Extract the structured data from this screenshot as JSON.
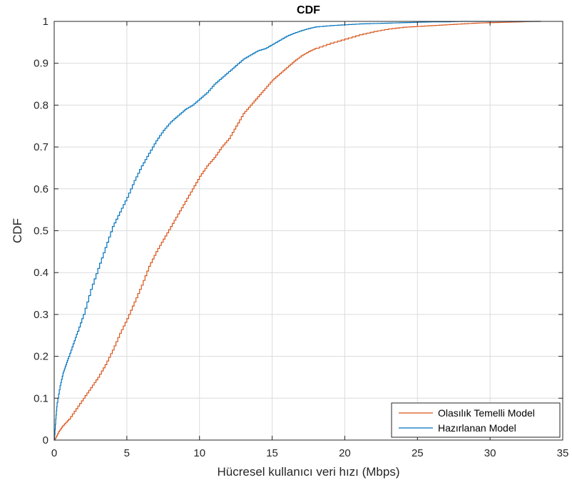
{
  "chart_data": {
    "type": "line",
    "title": "CDF",
    "xlabel": "Hücresel kullanıcı veri hızı (Mbps)",
    "ylabel": "CDF",
    "xlim": [
      0,
      35
    ],
    "ylim": [
      0,
      1
    ],
    "xticks": [
      0,
      5,
      10,
      15,
      20,
      25,
      30,
      35
    ],
    "yticks": [
      0,
      0.1,
      0.2,
      0.3,
      0.4,
      0.5,
      0.6,
      0.7,
      0.8,
      0.9,
      1
    ],
    "xtick_labels": [
      "0",
      "5",
      "10",
      "15",
      "20",
      "25",
      "30",
      "35"
    ],
    "ytick_labels": [
      "0",
      "0.1",
      "0.2",
      "0.3",
      "0.4",
      "0.5",
      "0.6",
      "0.7",
      "0.8",
      "0.9",
      "1"
    ],
    "grid": true,
    "legend_position": "bottom-right",
    "series": [
      {
        "name": "Olasılık Temelli Model",
        "color": "#D95319",
        "x": [
          0,
          0.3,
          0.6,
          1,
          1.5,
          2,
          2.5,
          3,
          3.5,
          4,
          4.5,
          5,
          5.5,
          6,
          6.5,
          7,
          7.5,
          8,
          8.5,
          9,
          9.5,
          10,
          10.5,
          11,
          11.5,
          12,
          12.5,
          13,
          13.5,
          14,
          14.5,
          15,
          15.5,
          16,
          16.5,
          17,
          17.5,
          18,
          19,
          20,
          21,
          22,
          23,
          24,
          25,
          26,
          27,
          28,
          29,
          30,
          31,
          32,
          33,
          33.5
        ],
        "y": [
          0,
          0.02,
          0.035,
          0.05,
          0.075,
          0.1,
          0.125,
          0.15,
          0.18,
          0.215,
          0.255,
          0.29,
          0.33,
          0.37,
          0.415,
          0.45,
          0.48,
          0.51,
          0.54,
          0.57,
          0.6,
          0.63,
          0.655,
          0.675,
          0.7,
          0.72,
          0.75,
          0.78,
          0.8,
          0.82,
          0.84,
          0.86,
          0.875,
          0.89,
          0.905,
          0.918,
          0.928,
          0.936,
          0.948,
          0.958,
          0.968,
          0.976,
          0.982,
          0.986,
          0.988,
          0.99,
          0.992,
          0.994,
          0.996,
          0.997,
          0.998,
          0.999,
          1,
          1
        ]
      },
      {
        "name": "Hazırlanan Model",
        "color": "#0072BD",
        "x": [
          0,
          0.1,
          0.2,
          0.4,
          0.6,
          0.8,
          1,
          1.3,
          1.6,
          2,
          2.5,
          3,
          3.5,
          4,
          4.5,
          5,
          5.5,
          6,
          6.5,
          7,
          7.5,
          8,
          8.5,
          9,
          9.5,
          10,
          10.5,
          11,
          11.5,
          12,
          12.5,
          13,
          13.5,
          14,
          14.5,
          15,
          15.5,
          16,
          16.5,
          17,
          17.5,
          18,
          19,
          20,
          21,
          22,
          23,
          24,
          25,
          26,
          27,
          28,
          30,
          32,
          33.5
        ],
        "y": [
          0,
          0.05,
          0.09,
          0.13,
          0.16,
          0.18,
          0.2,
          0.23,
          0.26,
          0.3,
          0.36,
          0.41,
          0.46,
          0.51,
          0.545,
          0.58,
          0.62,
          0.655,
          0.685,
          0.715,
          0.74,
          0.76,
          0.775,
          0.79,
          0.8,
          0.815,
          0.83,
          0.85,
          0.865,
          0.88,
          0.895,
          0.91,
          0.92,
          0.93,
          0.935,
          0.945,
          0.955,
          0.965,
          0.972,
          0.978,
          0.983,
          0.987,
          0.99,
          0.992,
          0.994,
          0.995,
          0.996,
          0.997,
          0.998,
          0.999,
          0.999,
          1,
          1,
          1,
          1
        ]
      }
    ]
  }
}
